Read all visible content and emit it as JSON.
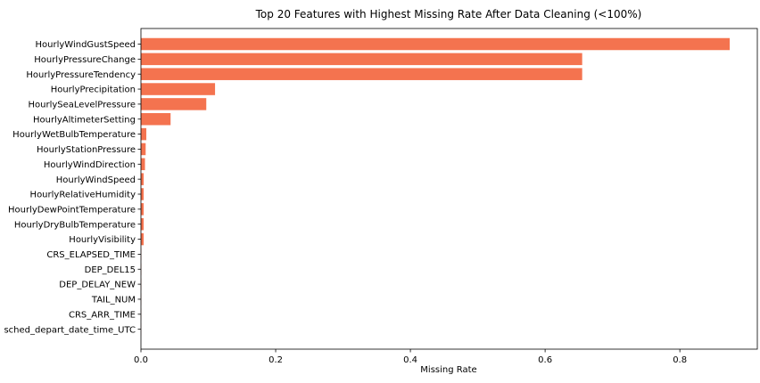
{
  "chart_data": {
    "type": "bar",
    "orientation": "horizontal",
    "title": "Top 20 Features with Highest Missing Rate After Data Cleaning (<100%)",
    "xlabel": "Missing Rate",
    "ylabel": "",
    "xlim": [
      0,
      0.915
    ],
    "xticks": [
      0.0,
      0.2,
      0.4,
      0.6,
      0.8
    ],
    "xtick_labels": [
      "0.0",
      "0.2",
      "0.4",
      "0.6",
      "0.8"
    ],
    "bar_color": "#f4734f",
    "grid": false,
    "categories": [
      "HourlyWindGustSpeed",
      "HourlyPressureChange",
      "HourlyPressureTendency",
      "HourlyPrecipitation",
      "HourlySeaLevelPressure",
      "HourlyAltimeterSetting",
      "HourlyWetBulbTemperature",
      "HourlyStationPressure",
      "HourlyWindDirection",
      "HourlyWindSpeed",
      "HourlyRelativeHumidity",
      "HourlyDewPointTemperature",
      "HourlyDryBulbTemperature",
      "HourlyVisibility",
      "CRS_ELAPSED_TIME",
      "DEP_DEL15",
      "DEP_DELAY_NEW",
      "TAIL_NUM",
      "CRS_ARR_TIME",
      "sched_depart_date_time_UTC"
    ],
    "values": [
      0.874,
      0.655,
      0.655,
      0.11,
      0.097,
      0.044,
      0.008,
      0.007,
      0.006,
      0.004,
      0.004,
      0.004,
      0.004,
      0.004,
      0.0005,
      0.0004,
      0.0004,
      0.0003,
      0.0003,
      0.0002
    ]
  }
}
